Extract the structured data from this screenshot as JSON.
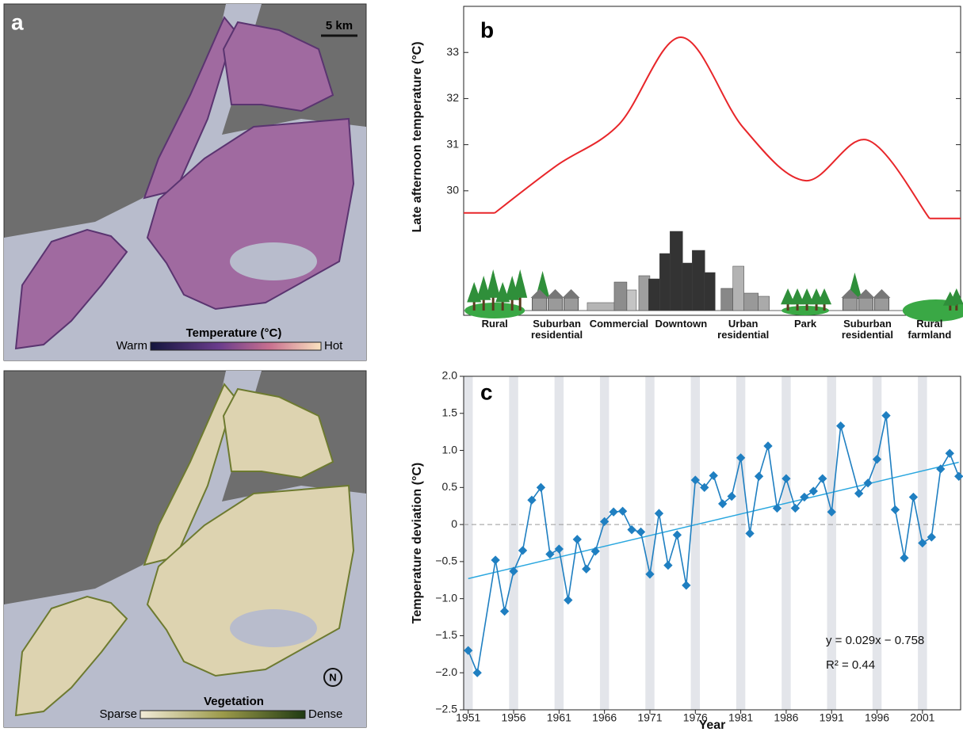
{
  "maps": [
    {
      "label": "a",
      "scale_bar": "5 km",
      "legend_title": "Temperature (°C)",
      "legend_low": "Warm",
      "legend_high": "Hot"
    },
    {
      "legend_title": "Vegetation",
      "legend_low": "Sparse",
      "legend_high": "Dense",
      "north": "N"
    }
  ],
  "chart_data": [
    {
      "type": "line",
      "label": "b",
      "ylabel": "Late afternoon temperature (°C)",
      "categories": [
        "Rural",
        "Suburban residential",
        "Commercial",
        "Downtown",
        "Urban residential",
        "Park",
        "Suburban residential",
        "Rural farmland"
      ],
      "series": [
        {
          "color": "#e8262a",
          "values": [
            29.52,
            30.55,
            31.44,
            33.33,
            31.37,
            30.22,
            31.1,
            29.4
          ]
        }
      ],
      "ylim": [
        27.3,
        34.0
      ],
      "yticks": [
        30,
        31,
        32,
        33
      ]
    },
    {
      "type": "line",
      "label": "c",
      "xlabel": "Year",
      "ylabel": "Temperature deviation (°C)",
      "series": [
        {
          "color": "#1f7fc1",
          "marker": "diamond",
          "x": [
            1951,
            1952,
            1954,
            1955,
            1956,
            1957,
            1958,
            1959,
            1960,
            1961,
            1962,
            1963,
            1964,
            1965,
            1966,
            1967,
            1968,
            1969,
            1970,
            1971,
            1972,
            1973,
            1974,
            1975,
            1976,
            1977,
            1978,
            1979,
            1980,
            1981,
            1982,
            1983,
            1984,
            1985,
            1986,
            1987,
            1988,
            1989,
            1990,
            1991,
            1992,
            1994,
            1995,
            1996,
            1997,
            1998,
            1999,
            2000,
            2001,
            2002,
            2003,
            2004,
            2005
          ],
          "values": [
            -1.7,
            -2.0,
            -0.48,
            -1.17,
            -0.63,
            -0.35,
            0.33,
            0.5,
            -0.4,
            -0.33,
            -1.02,
            -0.2,
            -0.6,
            -0.36,
            0.04,
            0.17,
            0.18,
            -0.07,
            -0.1,
            -0.67,
            0.15,
            -0.55,
            -0.14,
            -0.82,
            0.6,
            0.5,
            0.66,
            0.28,
            0.38,
            0.9,
            -0.12,
            0.65,
            1.06,
            0.22,
            0.62,
            0.22,
            0.37,
            0.45,
            0.62,
            0.17,
            1.33,
            0.42,
            0.56,
            0.88,
            1.47,
            0.2,
            -0.45,
            0.37,
            -0.25,
            -0.17,
            0.75,
            0.96,
            0.65
          ]
        }
      ],
      "trend": {
        "color": "#2aa7df",
        "x": [
          1951,
          2005
        ],
        "values": [
          -0.73,
          0.84
        ]
      },
      "reference_line": 0,
      "annotations": [
        "y = 0.029x − 0.758",
        "R² = 0.44"
      ],
      "xlim": [
        1950.5,
        2005.2
      ],
      "xticks": [
        1951,
        1956,
        1961,
        1966,
        1971,
        1976,
        1981,
        1986,
        1991,
        1996,
        2001
      ],
      "ylim": [
        -2.5,
        2.0
      ],
      "yticks": [
        {
          "value": -2.5,
          "label": "−2.5"
        },
        {
          "value": -2,
          "label": "−2.0"
        },
        {
          "value": -1.5,
          "label": "−1.5"
        },
        {
          "value": -1,
          "label": "−1.0"
        },
        {
          "value": -0.5,
          "label": "−0.5"
        },
        0,
        0.5,
        {
          "value": 1,
          "label": "1.0"
        },
        1.5,
        {
          "value": 2,
          "label": "2.0"
        }
      ]
    }
  ]
}
